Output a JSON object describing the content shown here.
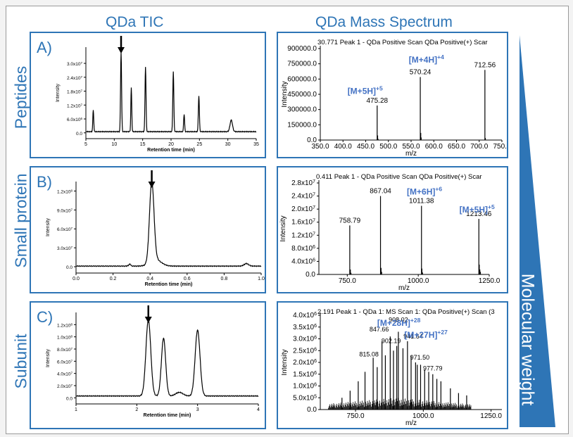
{
  "headers": {
    "tic": "QDa TIC",
    "ms": "QDa Mass Spectrum"
  },
  "rows": [
    "Peptides",
    "Small protein",
    "Subunit"
  ],
  "weight_label": "Molecular weight",
  "colors": {
    "accent": "#2e75b6",
    "trace": "#000000"
  },
  "chart_data": [
    {
      "type": "line",
      "id": "tic-a",
      "panel_letter": "A)",
      "xlabel": "Retention time (min)",
      "ylabel": "Intensity",
      "xlim": [
        5,
        35
      ],
      "ylim": [
        -2500000.0,
        37000000.0
      ],
      "xticks": [
        5,
        10,
        15,
        20,
        25,
        30,
        35
      ],
      "xtick_labels": [
        "5",
        "10",
        "15",
        "20",
        "25",
        "30",
        "35"
      ],
      "yticks": [
        0,
        6000000.0,
        12000000.0,
        18000000.0,
        24000000.0,
        30000000.0
      ],
      "ytick_labels": [
        "0.0",
        "6.0x10^6",
        "1.2x10^7",
        "1.8x10^7",
        "2.4x10^7",
        "3.0x10^7"
      ],
      "baseline": 500000.0,
      "peaks": [
        [
          6.3,
          9500000.0,
          0.08
        ],
        [
          11.2,
          34500000.0,
          0.09
        ],
        [
          13.0,
          19000000.0,
          0.08
        ],
        [
          15.5,
          28000000.0,
          0.09
        ],
        [
          20.4,
          26000000.0,
          0.09
        ],
        [
          22.3,
          7500000.0,
          0.08
        ],
        [
          24.9,
          15500000.0,
          0.09
        ],
        [
          30.6,
          5000000.0,
          0.22
        ]
      ],
      "arrow_x": 11.2
    },
    {
      "type": "line",
      "id": "tic-b",
      "panel_letter": "B)",
      "xlabel": "Retention time (min)",
      "ylabel": "Intensity",
      "xlim": [
        0.0,
        1.0
      ],
      "ylim": [
        -10000000.0,
        135000000.0
      ],
      "xticks": [
        0.0,
        0.2,
        0.4,
        0.6,
        0.8,
        1.0
      ],
      "xtick_labels": [
        "0.0",
        "0.2",
        "0.4",
        "0.6",
        "0.8",
        "1.0"
      ],
      "yticks": [
        0,
        30000000.0,
        60000000.0,
        90000000.0,
        120000000.0
      ],
      "ytick_labels": [
        "0.0",
        "3.0x10^7",
        "6.0x10^7",
        "9.0x10^7",
        "1.2x10^8"
      ],
      "baseline": 1000000.0,
      "peaks": [
        [
          0.409,
          127000000.0,
          0.012
        ],
        [
          0.43,
          10000000.0,
          0.03
        ],
        [
          0.29,
          3000000.0,
          0.006
        ],
        [
          0.92,
          4000000.0,
          0.012
        ]
      ],
      "arrow_x": 0.409
    },
    {
      "type": "line",
      "id": "tic-c",
      "panel_letter": "C)",
      "xlabel": "Retention time (min)",
      "ylabel": "Intensity",
      "xlim": [
        1,
        4
      ],
      "ylim": [
        -10000000.0,
        140000000.0
      ],
      "xticks": [
        1,
        2,
        3,
        4
      ],
      "xtick_labels": [
        "1",
        "2",
        "3",
        "4"
      ],
      "yticks": [
        0,
        20000000.0,
        40000000.0,
        60000000.0,
        80000000.0,
        100000000.0,
        120000000.0
      ],
      "ytick_labels": [
        "0.0",
        "2.0x10^7",
        "4.0x10^7",
        "6.0x10^7",
        "8.0x10^7",
        "1.0x10^8",
        "1.2x10^8"
      ],
      "baseline": 3000000.0,
      "peaks": [
        [
          2.19,
          125000000.0,
          0.04
        ],
        [
          2.44,
          95000000.0,
          0.035
        ],
        [
          3.0,
          108000000.0,
          0.04
        ],
        [
          2.7,
          6000000.0,
          0.06
        ]
      ],
      "arrow_x": 2.19
    },
    {
      "type": "bar",
      "id": "ms-a",
      "title": "30.771 Peak 1 - QDa Positive Scan QDa Positive(+) Scar",
      "xlabel": "m/z",
      "ylabel": "Intensity",
      "xlim": [
        350.0,
        750.0
      ],
      "ylim": [
        0,
        900000.0
      ],
      "xticks": [
        350,
        400,
        450,
        500,
        550,
        600,
        650,
        700,
        750
      ],
      "xtick_labels": [
        "350.0",
        "400.0",
        "450.0",
        "500.0",
        "550.0",
        "600.0",
        "650.0",
        "700.0",
        "750.0"
      ],
      "yticks": [
        0,
        150000,
        300000,
        450000,
        600000,
        750000,
        900000
      ],
      "ytick_labels": [
        "0.0",
        "150000.0",
        "300000.0",
        "450000.0",
        "600000.0",
        "750000.0",
        "900000.0"
      ],
      "peaks": [
        [
          475.28,
          340000
        ],
        [
          476.3,
          45000
        ],
        [
          477.2,
          12000
        ],
        [
          570.24,
          620000
        ],
        [
          571.3,
          70000
        ],
        [
          572.2,
          25000
        ],
        [
          712.56,
          690000
        ],
        [
          713.6,
          20000
        ]
      ],
      "labels": [
        {
          "x": 475.28,
          "y": 340000,
          "text": "475.28"
        },
        {
          "x": 570.24,
          "y": 620000,
          "text": "570.24"
        },
        {
          "x": 712.56,
          "y": 690000,
          "text": "712.56"
        }
      ],
      "annotations": [
        {
          "ion": "[M+5H]",
          "charge": "+5",
          "x": 410,
          "y": 455000
        },
        {
          "ion": "[M+4H]",
          "charge": "+4",
          "x": 545,
          "y": 760000
        }
      ]
    },
    {
      "type": "bar",
      "id": "ms-b",
      "title": "0.411 Peak 1 - QDa Positive Scan QDa Positive(+) Scar",
      "xlabel": "m/z",
      "ylabel": "Intensity",
      "xlim": [
        650.0,
        1250.0
      ],
      "ylim": [
        0,
        28000000.0
      ],
      "xticks": [
        750,
        1000,
        1250
      ],
      "xtick_labels": [
        "750.0",
        "1000.0",
        "1250.0"
      ],
      "yticks": [
        0,
        4000000.0,
        8000000.0,
        12000000.0,
        16000000.0,
        20000000.0,
        24000000.0,
        28000000.0
      ],
      "ytick_labels": [
        "0.0",
        "4.0x10^6",
        "8.0x10^6",
        "1.2x10^7",
        "1.6x10^7",
        "2.0x10^7",
        "2.4x10^7",
        "2.8x10^7"
      ],
      "peaks": [
        [
          758.79,
          15000000.0
        ],
        [
          761,
          1500000.0
        ],
        [
          763,
          500000.0
        ],
        [
          867.04,
          24000000.0
        ],
        [
          869,
          2000000.0
        ],
        [
          871,
          800000.0
        ],
        [
          1011.38,
          21000000.0
        ],
        [
          1013,
          1800000.0
        ],
        [
          1015,
          600000.0
        ],
        [
          1213.46,
          17000000.0
        ],
        [
          1215,
          3000000.0
        ],
        [
          1217,
          1500000.0
        ],
        [
          1219,
          800000.0
        ]
      ],
      "labels": [
        {
          "x": 758.79,
          "y": 15000000.0,
          "text": "758.79"
        },
        {
          "x": 867.04,
          "y": 24000000.0,
          "text": "867.04"
        },
        {
          "x": 1011.38,
          "y": 21000000.0,
          "text": "1011.38"
        },
        {
          "x": 1213.46,
          "y": 17000000.0,
          "text": "1213.46"
        }
      ],
      "annotations": [
        {
          "ion": "[M+6H]",
          "charge": "+6",
          "x": 960,
          "y": 24500000.0
        },
        {
          "ion": "[M+5H]",
          "charge": "+5",
          "x": 1145,
          "y": 19000000.0
        }
      ]
    },
    {
      "type": "bar",
      "id": "ms-c",
      "title": "2.191 Peak 1 - QDa 1: MS Scan 1: QDa Positive(+) Scan (3",
      "xlabel": "m/z",
      "ylabel": "Intensity",
      "xlim": [
        620.0,
        1290.0
      ],
      "ylim": [
        0,
        4000000.0
      ],
      "xticks": [
        750,
        1000,
        1250
      ],
      "xtick_labels": [
        "750.0",
        "1000.0",
        "1250.0"
      ],
      "yticks": [
        0,
        500000.0,
        1000000.0,
        1500000.0,
        2000000.0,
        2500000.0,
        3000000.0,
        3500000.0,
        4000000.0
      ],
      "ytick_labels": [
        "0.0",
        "5.0x10^5",
        "1.0x10^6",
        "1.5x10^6",
        "2.0x10^6",
        "2.5x10^6",
        "3.0x10^6",
        "3.5x10^6",
        "4.0x10^6"
      ],
      "peaks": [
        [
          815.08,
          2200000.0
        ],
        [
          847.66,
          2900000.0
        ],
        [
          878,
          3100000.0
        ],
        [
          902.19,
          2700000.0
        ],
        [
          908.02,
          3300000.0
        ],
        [
          941.64,
          2900000.0
        ],
        [
          971.5,
          2000000.0
        ],
        [
          977.79,
          1900000.0
        ],
        [
          785,
          1600000.0
        ],
        [
          760,
          1200000.0
        ],
        [
          1005,
          1700000.0
        ],
        [
          1035,
          1500000.0
        ],
        [
          1065,
          1200000.0
        ],
        [
          1100,
          900000.0
        ],
        [
          1130,
          700000.0
        ],
        [
          1160,
          600000.0
        ],
        [
          730,
          800000.0
        ],
        [
          700,
          500000.0
        ],
        [
          830,
          1800000.0
        ],
        [
          860,
          2300000.0
        ],
        [
          890,
          2500000.0
        ],
        [
          925,
          2600000.0
        ],
        [
          955,
          2300000.0
        ],
        [
          990,
          1900000.0
        ],
        [
          1020,
          1600000.0
        ],
        [
          1050,
          1300000.0
        ]
      ],
      "labels": [
        {
          "x": 815.08,
          "y": 2200000.0,
          "text": "815.08"
        },
        {
          "x": 847.66,
          "y": 2900000.0,
          "text": "847.66"
        },
        {
          "x": 902.19,
          "y": 2700000.0,
          "text": "902.19"
        },
        {
          "x": 908.02,
          "y": 3300000.0,
          "text": "908.02"
        },
        {
          "x": 941.64,
          "y": 2900000.0,
          "text": "941.64"
        },
        {
          "x": 971.5,
          "y": 2000000.0,
          "text": "971.50"
        },
        {
          "x": 977.79,
          "y": 1900000.0,
          "text": "977.79"
        }
      ],
      "annotations": [
        {
          "ion": "[M+28H]",
          "charge": "+28",
          "x": 830,
          "y": 3550000.0
        },
        {
          "ion": "[M+27H]",
          "charge": "+27",
          "x": 930,
          "y": 3050000.0
        }
      ]
    }
  ]
}
